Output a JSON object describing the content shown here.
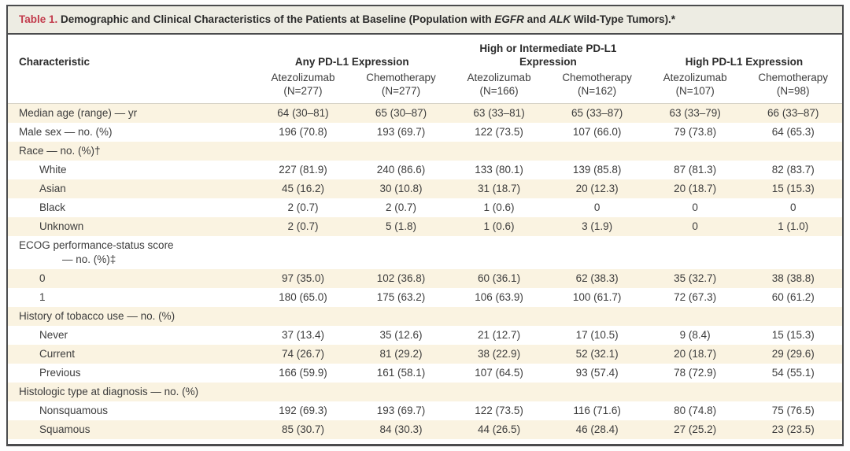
{
  "title": {
    "number": "Table 1.",
    "part1": " Demographic and Clinical Characteristics of the Patients at Baseline (Population with ",
    "gene1": "EGFR",
    "part2": " and ",
    "gene2": "ALK",
    "part3": " Wild-Type Tumors).*"
  },
  "columns": {
    "characteristic": "Characteristic",
    "groups": [
      {
        "label": "Any PD-L1 Expression"
      },
      {
        "label": "High or Intermediate PD-L1 Expression"
      },
      {
        "label": "High PD-L1 Expression"
      }
    ],
    "subcols": [
      {
        "drug": "Atezolizumab",
        "n": "(N=277)"
      },
      {
        "drug": "Chemotherapy",
        "n": "(N=277)"
      },
      {
        "drug": "Atezolizumab",
        "n": "(N=166)"
      },
      {
        "drug": "Chemotherapy",
        "n": "(N=162)"
      },
      {
        "drug": "Atezolizumab",
        "n": "(N=107)"
      },
      {
        "drug": "Chemotherapy",
        "n": "(N=98)"
      }
    ]
  },
  "rows": [
    {
      "label": "Median age (range) — yr",
      "indent": false,
      "values": [
        "64 (30–81)",
        "65 (30–87)",
        "63 (33–81)",
        "65 (33–87)",
        "63 (33–79)",
        "66 (33–87)"
      ]
    },
    {
      "label": "Male sex — no. (%)",
      "indent": false,
      "values": [
        "196 (70.8)",
        "193 (69.7)",
        "122 (73.5)",
        "107 (66.0)",
        "79 (73.8)",
        "64 (65.3)"
      ]
    },
    {
      "label": "Race — no. (%)†",
      "indent": false,
      "values": [
        "",
        "",
        "",
        "",
        "",
        ""
      ]
    },
    {
      "label": "White",
      "indent": true,
      "values": [
        "227 (81.9)",
        "240 (86.6)",
        "133 (80.1)",
        "139 (85.8)",
        "87 (81.3)",
        "82 (83.7)"
      ]
    },
    {
      "label": "Asian",
      "indent": true,
      "values": [
        "45 (16.2)",
        "30 (10.8)",
        "31 (18.7)",
        "20 (12.3)",
        "20 (18.7)",
        "15 (15.3)"
      ]
    },
    {
      "label": "Black",
      "indent": true,
      "values": [
        "2 (0.7)",
        "2 (0.7)",
        "1 (0.6)",
        "0",
        "0",
        "0"
      ]
    },
    {
      "label": "Unknown",
      "indent": true,
      "values": [
        "2 (0.7)",
        "5 (1.8)",
        "1 (0.6)",
        "3 (1.9)",
        "0",
        "1 (1.0)"
      ]
    },
    {
      "label": "ECOG performance-status score",
      "label2": "— no. (%)‡",
      "indent": false,
      "values": [
        "",
        "",
        "",
        "",
        "",
        ""
      ]
    },
    {
      "label": "0",
      "indent": true,
      "values": [
        "97 (35.0)",
        "102 (36.8)",
        "60 (36.1)",
        "62 (38.3)",
        "35 (32.7)",
        "38 (38.8)"
      ]
    },
    {
      "label": "1",
      "indent": true,
      "values": [
        "180 (65.0)",
        "175 (63.2)",
        "106 (63.9)",
        "100 (61.7)",
        "72 (67.3)",
        "60 (61.2)"
      ]
    },
    {
      "label": "History of tobacco use — no. (%)",
      "indent": false,
      "values": [
        "",
        "",
        "",
        "",
        "",
        ""
      ]
    },
    {
      "label": "Never",
      "indent": true,
      "values": [
        "37 (13.4)",
        "35 (12.6)",
        "21 (12.7)",
        "17 (10.5)",
        "9 (8.4)",
        "15 (15.3)"
      ]
    },
    {
      "label": "Current",
      "indent": true,
      "values": [
        "74 (26.7)",
        "81 (29.2)",
        "38 (22.9)",
        "52 (32.1)",
        "20 (18.7)",
        "29 (29.6)"
      ]
    },
    {
      "label": "Previous",
      "indent": true,
      "values": [
        "166 (59.9)",
        "161 (58.1)",
        "107 (64.5)",
        "93 (57.4)",
        "78 (72.9)",
        "54 (55.1)"
      ]
    },
    {
      "label": "Histologic type at diagnosis — no. (%)",
      "indent": false,
      "values": [
        "",
        "",
        "",
        "",
        "",
        ""
      ]
    },
    {
      "label": "Nonsquamous",
      "indent": true,
      "values": [
        "192 (69.3)",
        "193 (69.7)",
        "122 (73.5)",
        "116 (71.6)",
        "80 (74.8)",
        "75 (76.5)"
      ]
    },
    {
      "label": "Squamous",
      "indent": true,
      "values": [
        "85 (30.7)",
        "84 (30.3)",
        "44 (26.5)",
        "46 (28.4)",
        "27 (25.2)",
        "23 (23.5)"
      ]
    }
  ],
  "colors": {
    "stripe": "#faf3e1",
    "title_bar": "#edece3",
    "accent_red": "#c23b4c"
  }
}
